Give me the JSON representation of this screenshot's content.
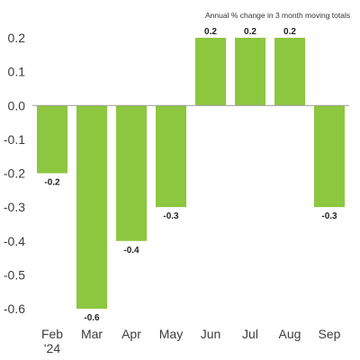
{
  "chart_data": {
    "type": "bar",
    "subtitle": "Annual % change in 3 month moving totals",
    "categories": [
      "Feb\n'24",
      "Mar",
      "Apr",
      "May",
      "Jun",
      "Jul",
      "Aug",
      "Sep"
    ],
    "values": [
      -0.2,
      -0.6,
      -0.4,
      -0.3,
      0.2,
      0.2,
      0.2,
      -0.3
    ],
    "value_labels": [
      "-0.2",
      "-0.6",
      "-0.4",
      "-0.3",
      "0.2",
      "0.2",
      "0.2",
      "-0.3"
    ],
    "yticks": [
      0.2,
      0.1,
      0.0,
      -0.1,
      -0.2,
      -0.3,
      -0.4,
      -0.5,
      -0.6
    ],
    "ytick_labels": [
      "0.2",
      "0.1",
      "0.0",
      "-0.1",
      "-0.2",
      "-0.3",
      "-0.4",
      "-0.5",
      "-0.6"
    ],
    "ylim": [
      -0.6,
      0.2
    ],
    "grid": false,
    "xlabel": "",
    "ylabel": "",
    "colors": {
      "bar": "#8dc63f",
      "zero_line": "#9a9a9a",
      "text": "#3d3d3d"
    }
  }
}
